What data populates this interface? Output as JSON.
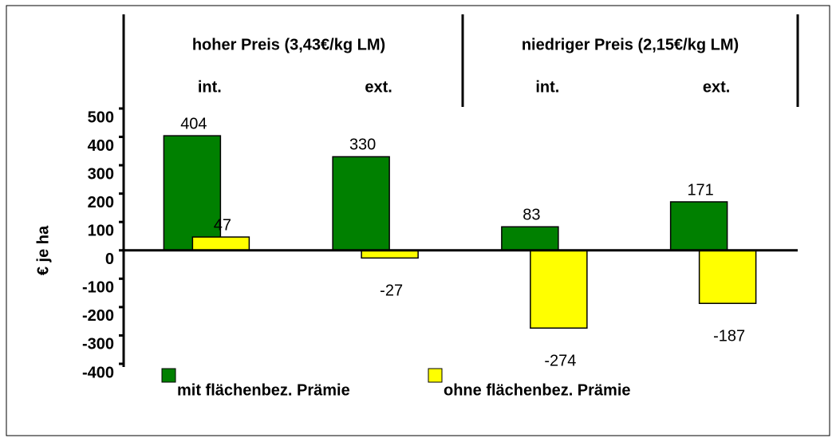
{
  "chart_data": {
    "type": "bar",
    "y_label": "€ je ha",
    "group_labels": [
      "hoher Preis (3,43€/kg LM)",
      "niedriger Preis (2,15€/kg LM)"
    ],
    "categories": [
      "int.",
      "ext.",
      "int.",
      "ext."
    ],
    "series": [
      {
        "name": "mit flächenbez. Prämie",
        "color": "#008000",
        "values": [
          404,
          330,
          83,
          171
        ]
      },
      {
        "name": "ohne flächenbez. Prämie",
        "color": "#ffff00",
        "values": [
          47,
          -27,
          -274,
          -187
        ]
      }
    ],
    "ylim": [
      -400,
      500
    ],
    "yticks": [
      -400,
      -300,
      -200,
      -100,
      0,
      100,
      200,
      300,
      400,
      500
    ],
    "legend": "bottom"
  }
}
